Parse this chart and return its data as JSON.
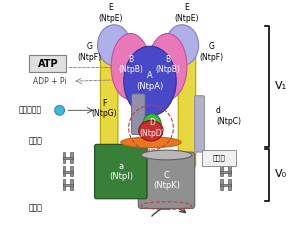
{
  "bg_color": "#ffffff",
  "labels": {
    "E_left": "E\n(NtpE)",
    "E_right": "E\n(NtpE)",
    "G_left": "G\n(NtpF)",
    "G_right": "G\n(NtpF)",
    "B_left": "B\n(NtpB)",
    "B_right": "B\n(NtpB)",
    "A": "A\n(NtpA)",
    "F": "F\n(NtpG)",
    "D": "D\n(NtpD)",
    "d": "d\n(NtpC)",
    "a": "a\n(NtpI)",
    "C": "C\n(NtpK)",
    "ATP": "ATP",
    "ADP": "ADP + Pi",
    "water_ion": "水素イオン",
    "inside_cell": "細胞内",
    "outside_cell": "細胞外",
    "cell_membrane": "細胞膜",
    "V1": "V₁",
    "V0": "V₀"
  },
  "colors": {
    "E_petals": "#b0b0e8",
    "B_pink": "#e878b8",
    "A_blue": "#4848c8",
    "G_yellow": "#e8d840",
    "F_gray": "#9090a8",
    "D_green": "#40b840",
    "rotor_red": "#c83030",
    "orange_disk": "#e87820",
    "green_block": "#388038",
    "gray_cylinder": "#909090",
    "cyan_ion": "#40b8d8",
    "dashed_line": "#c04040",
    "atp_box": "#e0e0e0"
  }
}
